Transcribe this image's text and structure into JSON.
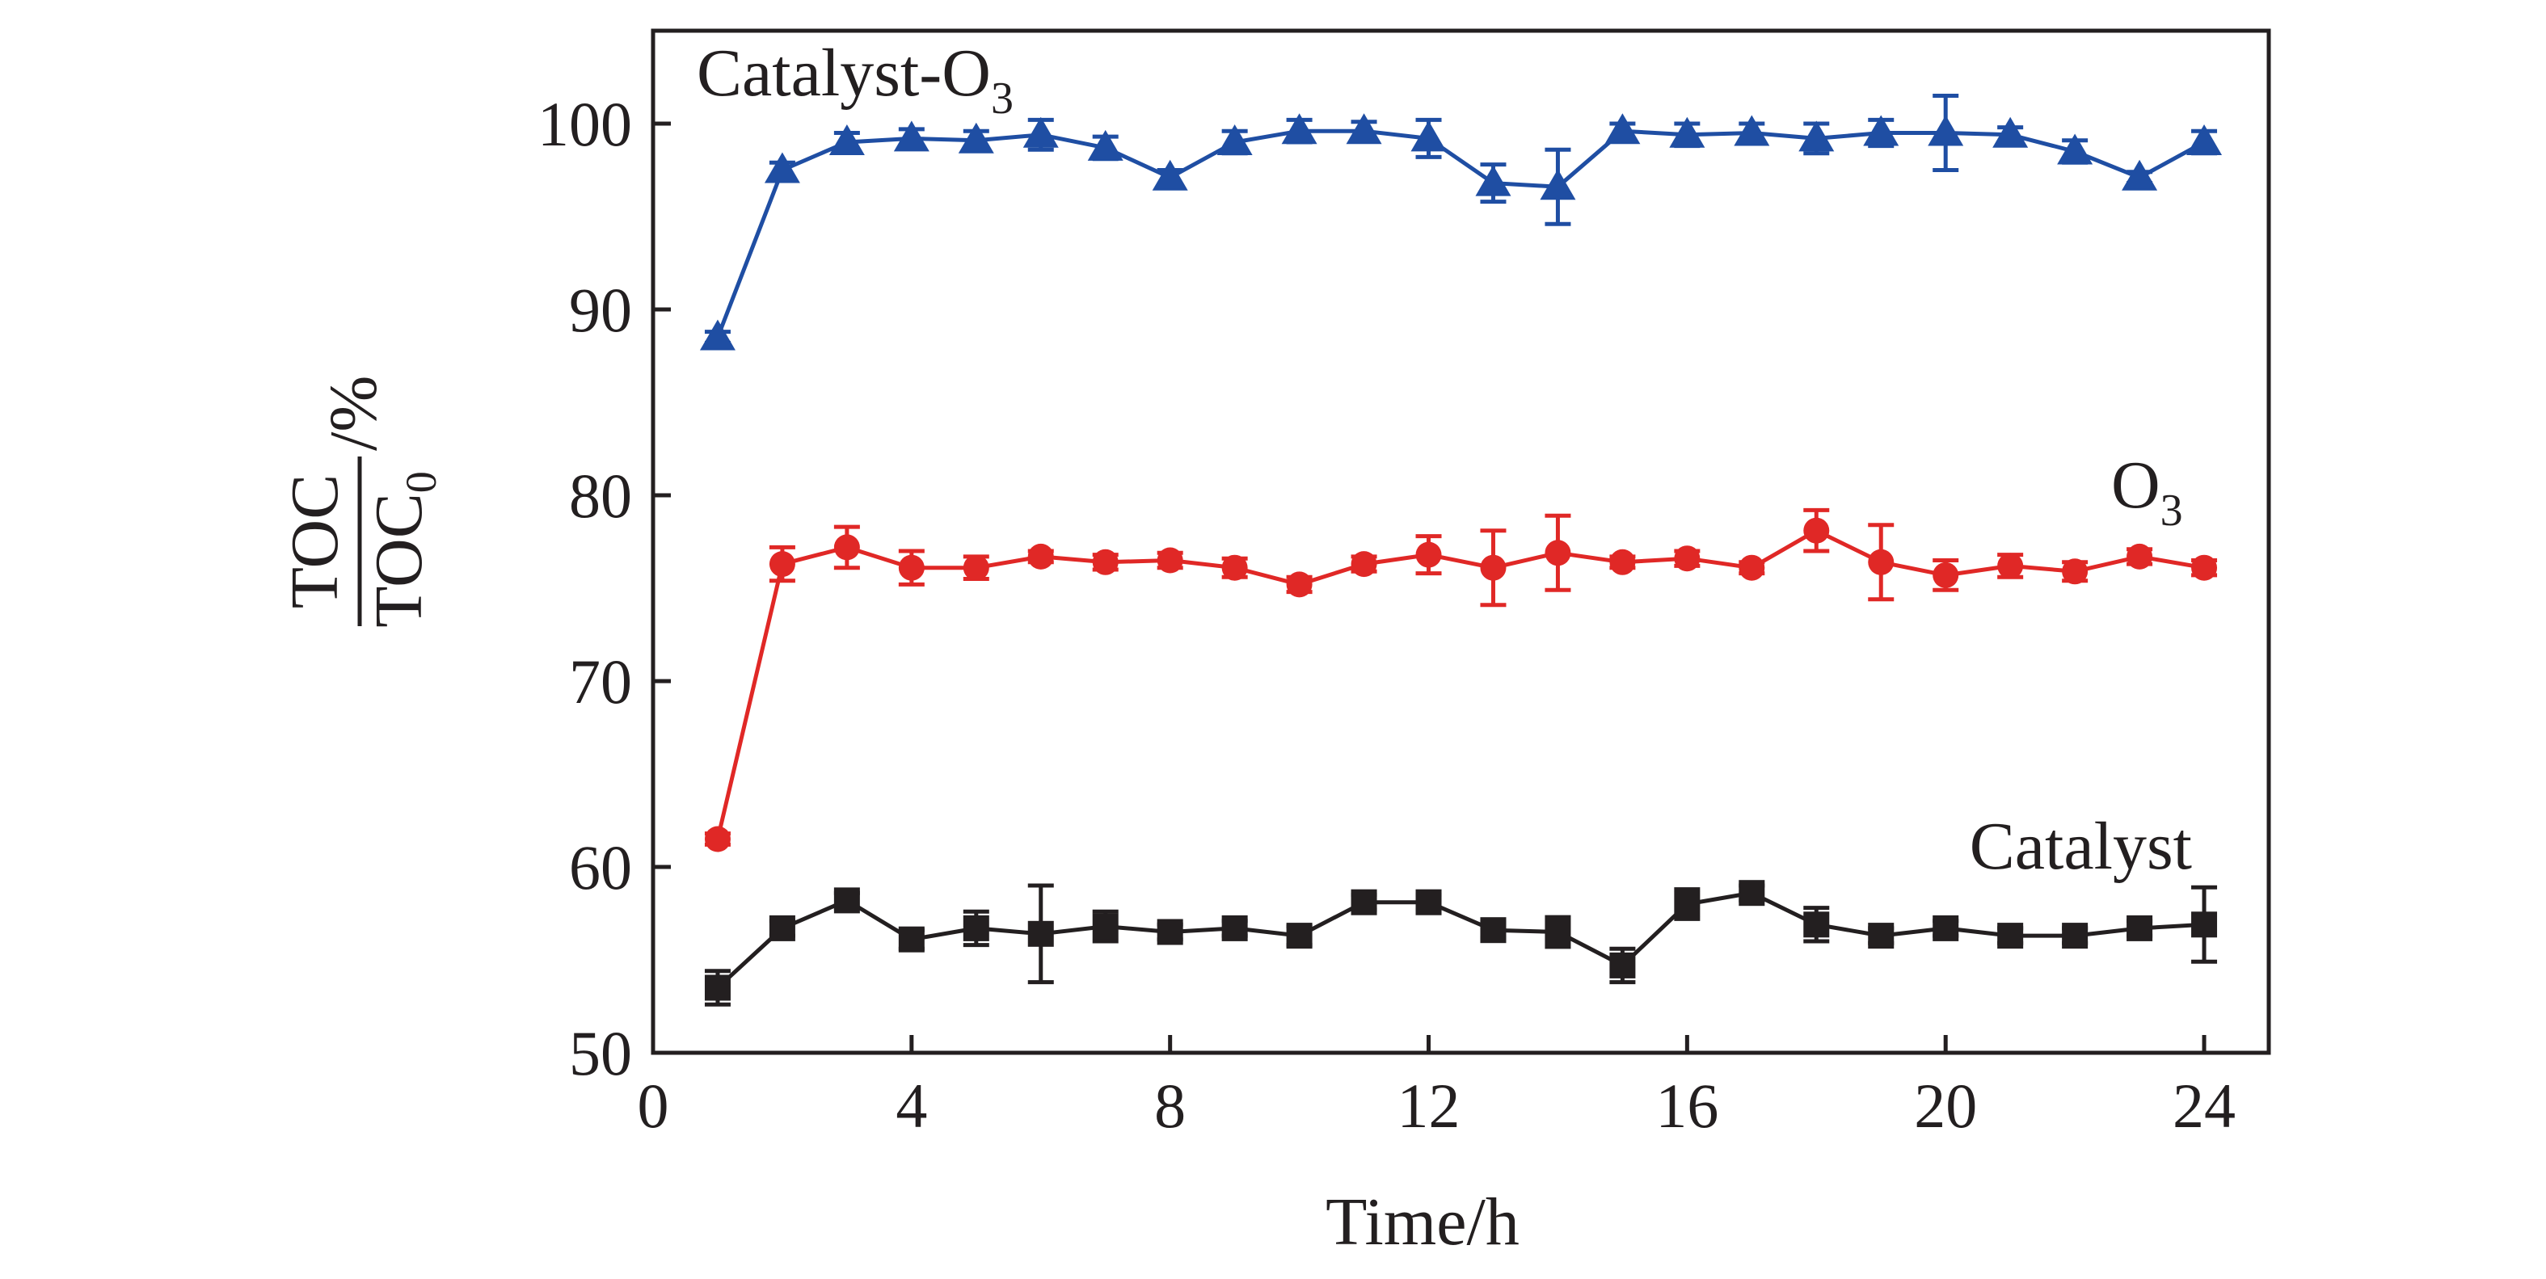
{
  "chart_data": {
    "type": "line",
    "xlabel": "Time/h",
    "ylabel": {
      "numerator": "TOC",
      "denominator": "TOC",
      "denominator_subscript": "0",
      "unit": "/%"
    },
    "xlim": [
      0,
      25
    ],
    "ylim": [
      50,
      105
    ],
    "xticks": [
      0,
      4,
      8,
      12,
      16,
      20,
      24
    ],
    "yticks": [
      50,
      60,
      70,
      80,
      90,
      100
    ],
    "grid": false,
    "legend": "none",
    "x": [
      1,
      2,
      3,
      4,
      5,
      6,
      7,
      8,
      9,
      10,
      11,
      12,
      13,
      14,
      15,
      16,
      17,
      18,
      19,
      20,
      21,
      22,
      23,
      24
    ],
    "series": [
      {
        "name": "Catalyst-O",
        "name_subscript": "3",
        "color": "#1f4ea3",
        "marker": "triangle",
        "values": [
          88.5,
          97.5,
          99.0,
          99.2,
          99.1,
          99.4,
          98.7,
          97.1,
          99.0,
          99.6,
          99.6,
          99.2,
          96.8,
          96.6,
          99.6,
          99.4,
          99.5,
          99.2,
          99.5,
          99.5,
          99.4,
          98.5,
          97.1,
          99.0
        ],
        "errors": [
          0.3,
          0.4,
          0.5,
          0.5,
          0.5,
          0.8,
          0.6,
          0.4,
          0.6,
          0.6,
          0.5,
          1.0,
          1.0,
          2.0,
          0.4,
          0.6,
          0.5,
          0.8,
          0.7,
          2.0,
          0.4,
          0.6,
          0.3,
          0.6
        ]
      },
      {
        "name": "O",
        "name_subscript": "3",
        "color": "#e02826",
        "marker": "circle",
        "values": [
          61.5,
          76.3,
          77.2,
          76.1,
          76.1,
          76.7,
          76.4,
          76.5,
          76.1,
          75.2,
          76.3,
          76.8,
          76.1,
          76.9,
          76.4,
          76.6,
          76.1,
          78.1,
          76.4,
          75.7,
          76.2,
          75.9,
          76.7,
          76.1
        ],
        "errors": [
          0.3,
          0.9,
          1.1,
          0.9,
          0.6,
          0.3,
          0.4,
          0.4,
          0.5,
          0.4,
          0.4,
          1.0,
          2.0,
          2.0,
          0.3,
          0.4,
          0.3,
          1.1,
          2.0,
          0.8,
          0.6,
          0.5,
          0.4,
          0.4
        ]
      },
      {
        "name": "Catalyst",
        "color": "#231f20",
        "marker": "square",
        "values": [
          53.5,
          56.7,
          58.2,
          56.1,
          56.7,
          56.4,
          56.8,
          56.5,
          56.7,
          56.3,
          58.1,
          58.1,
          56.6,
          56.5,
          54.7,
          58.0,
          58.6,
          56.9,
          56.3,
          56.7,
          56.3,
          56.3,
          56.7,
          56.9
        ],
        "errors": [
          0.9,
          0.4,
          0.4,
          0.5,
          0.9,
          2.6,
          0.8,
          0.4,
          0.4,
          0.5,
          0.4,
          0.4,
          0.4,
          0.8,
          0.9,
          0.8,
          0.4,
          0.9,
          0.4,
          0.4,
          0.4,
          0.4,
          0.4,
          2.0
        ]
      }
    ]
  }
}
